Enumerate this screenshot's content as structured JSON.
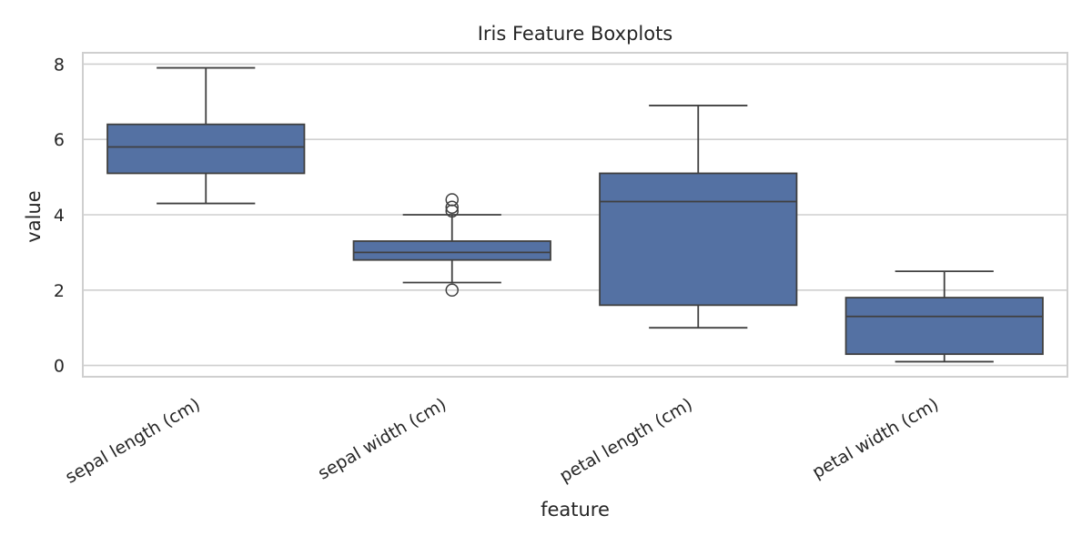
{
  "chart_data": {
    "type": "box",
    "title": "Iris Feature Boxplots",
    "xlabel": "feature",
    "ylabel": "value",
    "ylim": [
      -0.3,
      8.3
    ],
    "yticks": [
      0,
      2,
      4,
      6,
      8
    ],
    "grid": true,
    "colors": {
      "box_fill": "#5471a3",
      "line": "#404040",
      "grid": "#cfcfcf",
      "text": "#262626"
    },
    "categories": [
      "sepal length (cm)",
      "sepal width (cm)",
      "petal length (cm)",
      "petal width (cm)"
    ],
    "boxes": [
      {
        "category": "sepal length (cm)",
        "whisker_low": 4.3,
        "q1": 5.1,
        "median": 5.8,
        "q3": 6.4,
        "whisker_high": 7.9,
        "outliers": []
      },
      {
        "category": "sepal width (cm)",
        "whisker_low": 2.2,
        "q1": 2.8,
        "median": 3.0,
        "q3": 3.3,
        "whisker_high": 4.0,
        "outliers": [
          2.0,
          4.1,
          4.2,
          4.4
        ]
      },
      {
        "category": "petal length (cm)",
        "whisker_low": 1.0,
        "q1": 1.6,
        "median": 4.35,
        "q3": 5.1,
        "whisker_high": 6.9,
        "outliers": []
      },
      {
        "category": "petal width (cm)",
        "whisker_low": 0.1,
        "q1": 0.3,
        "median": 1.3,
        "q3": 1.8,
        "whisker_high": 2.5,
        "outliers": []
      }
    ]
  }
}
